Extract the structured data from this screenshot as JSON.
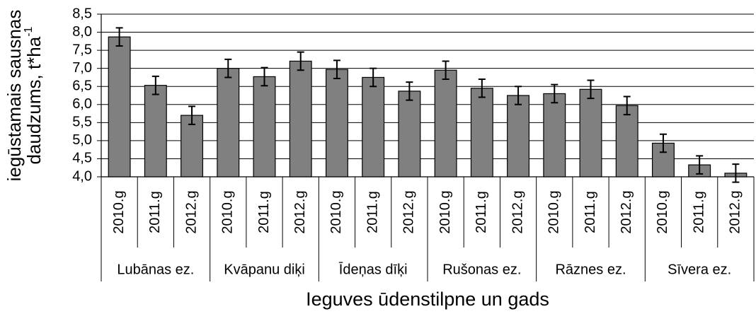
{
  "chart_data": {
    "type": "bar",
    "y_label": {
      "line1": "iegūstamais sausnas",
      "line2": "daudzums, t*ha",
      "superscript": "-1"
    },
    "x_label": "Ieguves ūdenstilpne un gads",
    "categories": [
      "2010.g",
      "2011.g",
      "2012.g",
      "2010.g",
      "2011.g",
      "2012.g",
      "2010.g",
      "2011.g",
      "2012.g",
      "2010.g",
      "2011.g",
      "2012.g",
      "2010.g",
      "2011.g",
      "2012.g",
      "2010.g",
      "2011.g",
      "2012.g"
    ],
    "groups": [
      "Lubānas ez.",
      "Kvāpanu diķi",
      "Īdeņas dīķi",
      "Rušonas ez.",
      "Rāznes ez.",
      "Sīvera ez."
    ],
    "values": [
      7.87,
      6.53,
      5.7,
      7.0,
      6.77,
      7.2,
      6.97,
      6.75,
      6.37,
      6.95,
      6.45,
      6.25,
      6.3,
      6.42,
      5.97,
      4.93,
      4.33,
      4.1
    ],
    "errors": [
      0.25,
      0.25,
      0.25,
      0.25,
      0.25,
      0.25,
      0.25,
      0.25,
      0.25,
      0.25,
      0.25,
      0.25,
      0.25,
      0.25,
      0.25,
      0.25,
      0.25,
      0.25
    ],
    "color": "#808080",
    "ylim": [
      4.0,
      8.5
    ],
    "yticks": [
      {
        "value": 4.0,
        "label": "4,0"
      },
      {
        "value": 4.5,
        "label": "4,5"
      },
      {
        "value": 5.0,
        "label": "5,0"
      },
      {
        "value": 5.5,
        "label": "5,5"
      },
      {
        "value": 6.0,
        "label": "6,0"
      },
      {
        "value": 6.5,
        "label": "6,5"
      },
      {
        "value": 7.0,
        "label": "7,0"
      },
      {
        "value": 7.5,
        "label": "7,5"
      },
      {
        "value": 8.0,
        "label": "8,0"
      },
      {
        "value": 8.5,
        "label": "8,5"
      }
    ],
    "grid": true
  }
}
